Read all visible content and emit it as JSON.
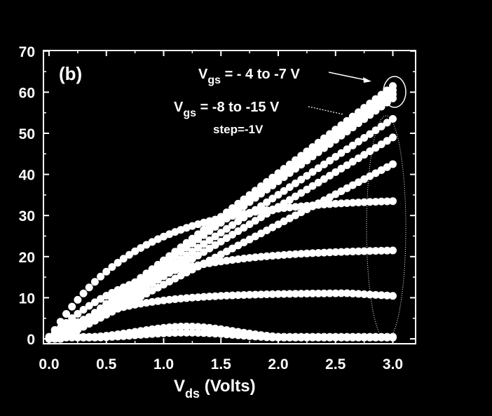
{
  "chart_data": {
    "type": "scatter",
    "panel_label": "(b)",
    "xlabel": {
      "main": "V",
      "sub": "ds",
      "rest": " (Volts)"
    },
    "ylabel": "",
    "xlim": [
      -0.05,
      3.2
    ],
    "ylim": [
      -1,
      70
    ],
    "xticks": [
      "0.0",
      "0.5",
      "1.0",
      "1.5",
      "2.0",
      "2.5",
      "3.0"
    ],
    "yticks": [
      "0",
      "10",
      "20",
      "30",
      "40",
      "50",
      "60",
      "70"
    ],
    "grid": false,
    "annotations": {
      "group1": {
        "main": "V",
        "sub": "gs",
        "rest": " = - 4 to -7 V"
      },
      "group2": {
        "main": "V",
        "sub": "gs",
        "rest": " = -8 to -15 V"
      },
      "step": "step=-1V"
    },
    "colors": {
      "background": "#000000",
      "marker": "#ffffff"
    },
    "series": [
      {
        "values_at_3V": 61.5,
        "shape": "linear"
      },
      {
        "values_at_3V": 60.5,
        "shape": "linear"
      },
      {
        "values_at_3V": 59.5,
        "shape": "linear"
      },
      {
        "values_at_3V": 58.5,
        "shape": "linear"
      },
      {
        "values_at_3V": 53.5,
        "shape": "linear"
      },
      {
        "values_at_3V": 49,
        "shape": "linear"
      },
      {
        "values_at_3V": 42.5,
        "shape": "linear"
      },
      {
        "values_at_3V": 33.5,
        "shape": "saturating"
      },
      {
        "values_at_3V": 21.5,
        "shape": "saturating"
      },
      {
        "values_at_3V": 10.5,
        "shape": "saturating-peak",
        "peak": 11.2
      },
      {
        "values_at_3V": 0.5,
        "shape": "hump",
        "peak": 3
      },
      {
        "values_at_3V": 0.3,
        "shape": "hump",
        "peak": 1.5
      }
    ]
  }
}
